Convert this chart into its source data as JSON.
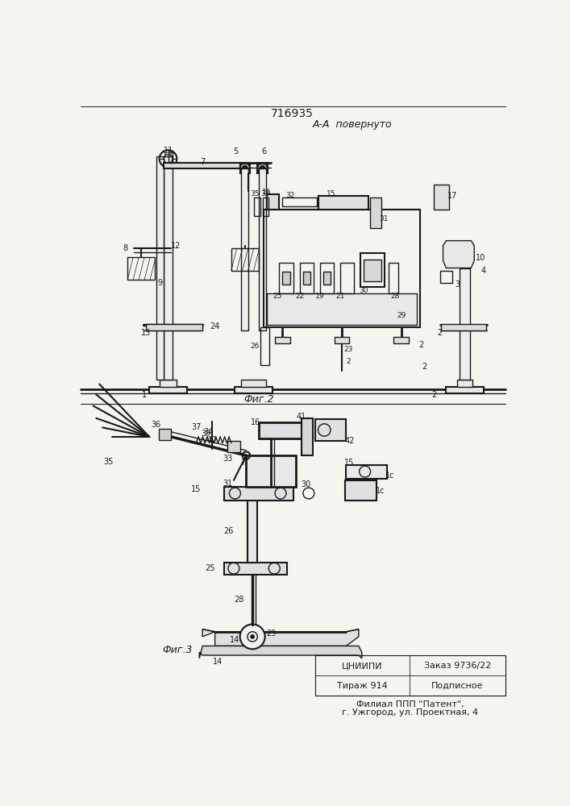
{
  "title": "716935",
  "subtitle": "А-А  повернуто",
  "fig2_label": "Фиг.2",
  "fig3_label": "Фиг.3",
  "bottom_left1": "ЦНИИПИ",
  "bottom_left2": "Тираж 914",
  "bottom_right1": "Заказ 9736/22",
  "bottom_right2": "Подписное",
  "bottom_addr1": "Филиал ППП \"Патент\",",
  "bottom_addr2": "г. Ужгород, ул. Проектная, 4",
  "bg_color": "#f5f5f0",
  "line_color": "#1a1a1a"
}
